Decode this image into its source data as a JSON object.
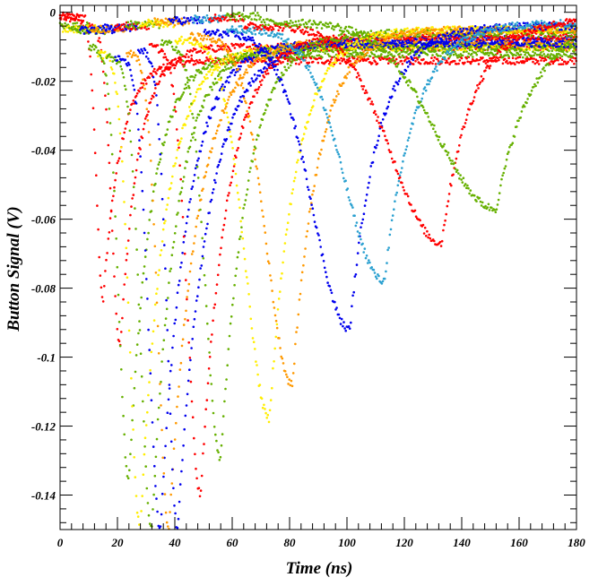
{
  "chart_data": {
    "type": "scatter",
    "title": "",
    "xlabel": "Time (ns)",
    "ylabel": "Button Signal (V)",
    "xlim": [
      0,
      180
    ],
    "ylim": [
      -0.15,
      0.002
    ],
    "x_ticks": [
      0,
      20,
      40,
      60,
      80,
      100,
      120,
      140,
      160,
      180
    ],
    "x_tick_labels": [
      "0",
      "20",
      "40",
      "60",
      "80",
      "100",
      "120",
      "140",
      "160",
      "180"
    ],
    "y_ticks": [
      0,
      -0.02,
      -0.04,
      -0.06,
      -0.08,
      -0.1,
      -0.12,
      -0.14
    ],
    "y_tick_labels": [
      "0",
      "-0.02",
      "-0.04",
      "-0.06",
      "-0.08",
      "-0.1",
      "-0.12",
      "-0.14"
    ],
    "grid": false,
    "legend": "none",
    "series": [
      {
        "color": "#ff0000",
        "values": [
          {
            "t": 6,
            "min": -0.003
          },
          {
            "t": 15,
            "min": -0.084
          },
          {
            "t": 22,
            "min": -0.014
          }
        ]
      },
      {
        "color": "#ff0000",
        "values": [
          {
            "t": 9,
            "min": -0.004
          },
          {
            "t": 21,
            "min": -0.097
          },
          {
            "t": 30,
            "min": -0.01
          }
        ]
      },
      {
        "color": "#66b000",
        "values": [
          {
            "t": 10,
            "min": -0.01
          },
          {
            "t": 24,
            "min": -0.136
          },
          {
            "t": 35,
            "min": -0.012
          }
        ]
      },
      {
        "color": "#ffee00",
        "values": [
          {
            "t": 13,
            "min": -0.012
          },
          {
            "t": 28,
            "min": -0.15
          },
          {
            "t": 40,
            "min": -0.01
          }
        ]
      },
      {
        "color": "#66b000",
        "values": [
          {
            "t": 16,
            "min": -0.013
          },
          {
            "t": 32,
            "min": -0.15
          },
          {
            "t": 44,
            "min": -0.01
          }
        ]
      },
      {
        "color": "#0000ee",
        "values": [
          {
            "t": 19,
            "min": -0.013
          },
          {
            "t": 35,
            "min": -0.15
          },
          {
            "t": 48,
            "min": -0.009
          }
        ]
      },
      {
        "color": "#ff9900",
        "values": [
          {
            "t": 23,
            "min": -0.012
          },
          {
            "t": 38,
            "min": -0.15
          },
          {
            "t": 52,
            "min": -0.008
          }
        ]
      },
      {
        "color": "#0000ee",
        "values": [
          {
            "t": 27,
            "min": -0.011
          },
          {
            "t": 41,
            "min": -0.15
          },
          {
            "t": 56,
            "min": -0.008
          }
        ]
      },
      {
        "color": "#ff0000",
        "values": [
          {
            "t": 31,
            "min": -0.01
          },
          {
            "t": 49,
            "min": -0.14
          },
          {
            "t": 62,
            "min": -0.007
          }
        ]
      },
      {
        "color": "#66b000",
        "values": [
          {
            "t": 35,
            "min": -0.009
          },
          {
            "t": 56,
            "min": -0.13
          },
          {
            "t": 69,
            "min": -0.006
          }
        ]
      },
      {
        "color": "#ffee00",
        "values": [
          {
            "t": 40,
            "min": -0.008
          },
          {
            "t": 73,
            "min": -0.118
          },
          {
            "t": 86,
            "min": -0.005
          }
        ]
      },
      {
        "color": "#ff9900",
        "values": [
          {
            "t": 45,
            "min": -0.007
          },
          {
            "t": 81,
            "min": -0.108
          },
          {
            "t": 94,
            "min": -0.005
          }
        ]
      },
      {
        "color": "#0000ee",
        "values": [
          {
            "t": 50,
            "min": -0.006
          },
          {
            "t": 101,
            "min": -0.092
          },
          {
            "t": 115,
            "min": -0.004
          }
        ]
      },
      {
        "color": "#2aa0d0",
        "values": [
          {
            "t": 58,
            "min": -0.005
          },
          {
            "t": 113,
            "min": -0.078
          },
          {
            "t": 128,
            "min": -0.003
          }
        ]
      },
      {
        "color": "#ff0000",
        "values": [
          {
            "t": 64,
            "min": -0.004
          },
          {
            "t": 133,
            "min": -0.067
          },
          {
            "t": 148,
            "min": -0.002
          }
        ]
      },
      {
        "color": "#66b000",
        "values": [
          {
            "t": 70,
            "min": -0.003
          },
          {
            "t": 152,
            "min": -0.057
          },
          {
            "t": 170,
            "min": -0.002
          }
        ]
      }
    ]
  }
}
